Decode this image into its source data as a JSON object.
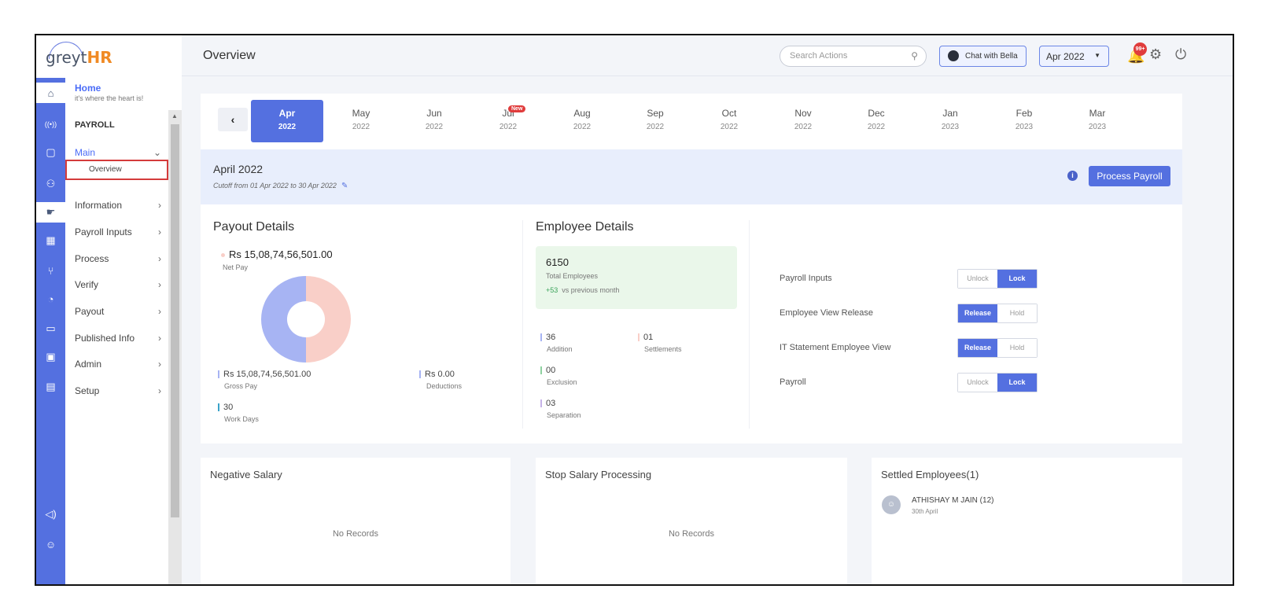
{
  "logo": {
    "text_grey": "greyt",
    "text_hr": "HR"
  },
  "header": {
    "title": "Overview",
    "search_placeholder": "Search Actions",
    "chat_label": "Chat with Bella",
    "month_selected": "Apr 2022",
    "notification_count": "99+"
  },
  "sidebar": {
    "home_title": "Home",
    "home_subtitle": "it's where the heart is!",
    "section": "PAYROLL",
    "main_label": "Main",
    "overview_label": "Overview",
    "items": [
      "Information",
      "Payroll Inputs",
      "Process",
      "Verify",
      "Payout",
      "Published Info",
      "Admin",
      "Setup"
    ]
  },
  "months": [
    {
      "m": "Apr",
      "y": "2022",
      "active": true
    },
    {
      "m": "May",
      "y": "2022"
    },
    {
      "m": "Jun",
      "y": "2022"
    },
    {
      "m": "Jul",
      "y": "2022",
      "tag": "New"
    },
    {
      "m": "Aug",
      "y": "2022"
    },
    {
      "m": "Sep",
      "y": "2022"
    },
    {
      "m": "Oct",
      "y": "2022"
    },
    {
      "m": "Nov",
      "y": "2022"
    },
    {
      "m": "Dec",
      "y": "2022"
    },
    {
      "m": "Jan",
      "y": "2023"
    },
    {
      "m": "Feb",
      "y": "2023"
    },
    {
      "m": "Mar",
      "y": "2023"
    }
  ],
  "period": {
    "title": "April 2022",
    "cutoff": "Cutoff from 01 Apr 2022 to 30 Apr 2022",
    "process_button": "Process Payroll"
  },
  "payout": {
    "title": "Payout Details",
    "net_pay": "Rs 15,08,74,56,501.00",
    "net_pay_label": "Net Pay",
    "gross_pay": "Rs 15,08,74,56,501.00",
    "gross_pay_label": "Gross Pay",
    "deductions": "Rs 0.00",
    "deductions_label": "Deductions",
    "work_days": "30",
    "work_days_label": "Work Days",
    "colors": {
      "net": "#f9cfc8",
      "gross": "#a7b4f3"
    }
  },
  "employees": {
    "title": "Employee Details",
    "total": "6150",
    "total_label": "Total Employees",
    "delta": "+53",
    "delta_label": "vs previous month",
    "addition": "36",
    "addition_label": "Addition",
    "settlements": "01",
    "settlements_label": "Settlements",
    "exclusion": "00",
    "exclusion_label": "Exclusion",
    "separation": "03",
    "separation_label": "Separation"
  },
  "toggles": [
    {
      "label": "Payroll Inputs",
      "left": "Unlock",
      "right": "Lock",
      "selected": "right"
    },
    {
      "label": "Employee View Release",
      "left": "Release",
      "right": "Hold",
      "selected": "left"
    },
    {
      "label": "IT Statement Employee View",
      "left": "Release",
      "right": "Hold",
      "selected": "left"
    },
    {
      "label": "Payroll",
      "left": "Unlock",
      "right": "Lock",
      "selected": "right"
    }
  ],
  "cards": {
    "negative_title": "Negative Salary",
    "negative_empty": "No Records",
    "stop_title": "Stop Salary Processing",
    "stop_empty": "No Records",
    "settled_title": "Settled Employees(1)",
    "settled_name": "ATHISHAY M JAIN (12)",
    "settled_date": "30th April"
  }
}
